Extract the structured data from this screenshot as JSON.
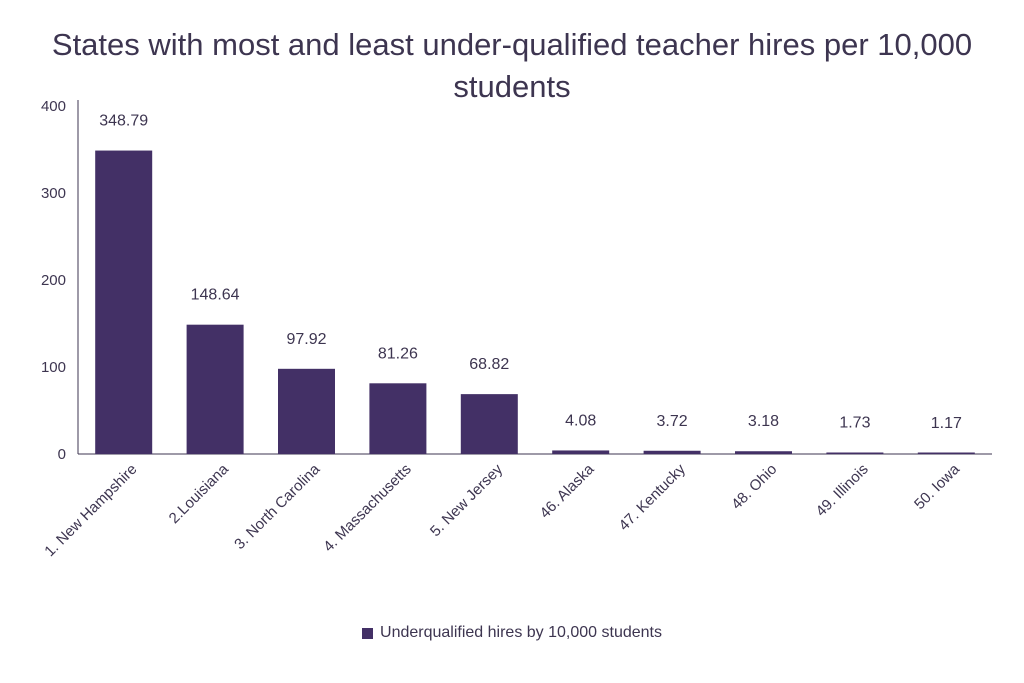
{
  "chart_data": {
    "type": "bar",
    "title": "States with most and least under-qualified teacher hires per 10,000 students",
    "xlabel": "",
    "ylabel": "",
    "categories": [
      "1. New Hampshire",
      "2.Louisiana",
      "3. North Carolina",
      "4. Massachusetts",
      "5. New Jersey",
      "46. Alaska",
      "47. Kentucky",
      "48. Ohio",
      "49. Illinois",
      "50. Iowa"
    ],
    "series": [
      {
        "name": "Underqualified hires by 10,000 students",
        "values": [
          348.79,
          148.64,
          97.92,
          81.26,
          68.82,
          4.08,
          3.72,
          3.18,
          1.73,
          1.17
        ],
        "labels": [
          "348.79",
          "148.64",
          "97.92",
          "81.26",
          "68.82",
          "4.08",
          "3.72",
          "3.18",
          "1.73",
          "1.17"
        ]
      }
    ],
    "yticks": [
      0,
      100,
      200,
      300,
      400
    ],
    "ylim": [
      0,
      400
    ],
    "grid": false,
    "legend_position": "bottom",
    "colors": {
      "bar": "#433066",
      "axis": "#3d3550",
      "text": "#3d3550"
    }
  }
}
